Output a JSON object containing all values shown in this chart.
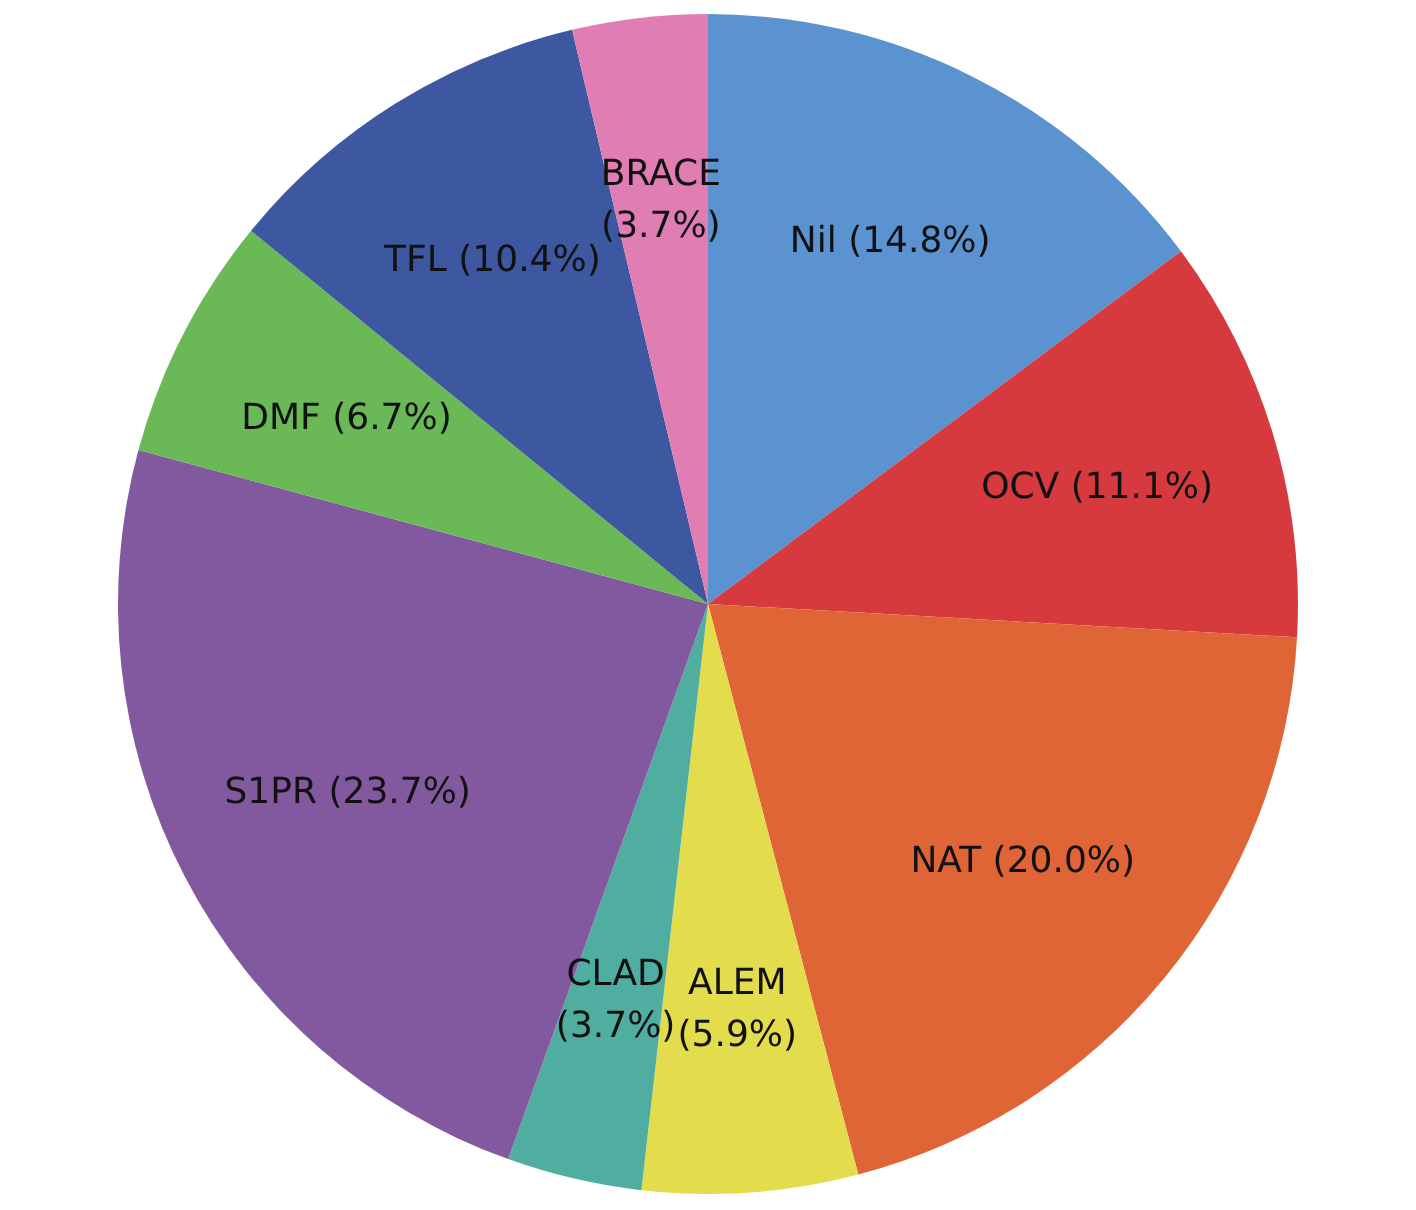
{
  "chart_data": {
    "type": "pie",
    "categories": [
      "Nil",
      "OCV",
      "NAT",
      "ALEM",
      "CLAD",
      "S1PR",
      "DMF",
      "TFL",
      "BRACE"
    ],
    "values": [
      14.8,
      11.1,
      20.0,
      5.9,
      3.7,
      23.7,
      6.7,
      10.4,
      3.7
    ],
    "value_labels": [
      "(14.8%)",
      "(11.1%)",
      "(20.0%)",
      "(5.9%)",
      "(3.7%)",
      "(23.7%)",
      "(6.7%)",
      "(10.4%)",
      "(3.7%)"
    ],
    "colors": [
      "#5b93d0",
      "#d63a3f",
      "#e06536",
      "#e3dc4c",
      "#4fae9f",
      "#82599f",
      "#6ab856",
      "#3d58a0",
      "#e07db3"
    ],
    "legend": false
  }
}
